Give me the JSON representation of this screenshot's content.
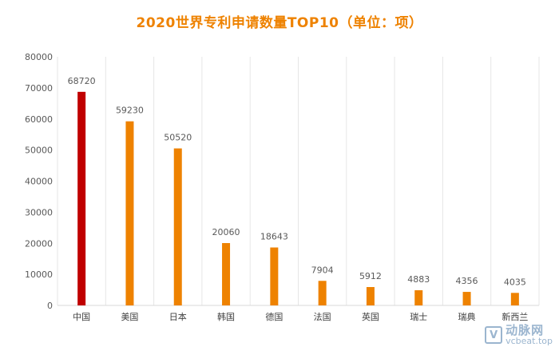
{
  "chart_data": {
    "type": "bar",
    "title": "2020世界专利申请数量TOP10（单位：项）",
    "categories": [
      "中国",
      "美国",
      "日本",
      "韩国",
      "德国",
      "法国",
      "英国",
      "瑞士",
      "瑞典",
      "新西兰"
    ],
    "values": [
      68720,
      59230,
      50520,
      20060,
      18643,
      7904,
      5912,
      4883,
      4356,
      4035
    ],
    "ylim": [
      0,
      80000
    ],
    "yticks": [
      0,
      10000,
      20000,
      30000,
      40000,
      50000,
      60000,
      70000,
      80000
    ],
    "grid": "vertical",
    "highlight_index": 0,
    "colors": {
      "highlight": "#c00000",
      "bar": "#ee8200",
      "title": "#ee8200",
      "grid": "#e6e6e6"
    }
  },
  "watermark": {
    "logo": "V",
    "brand": "动脉网",
    "url": "vcbeat.top"
  }
}
